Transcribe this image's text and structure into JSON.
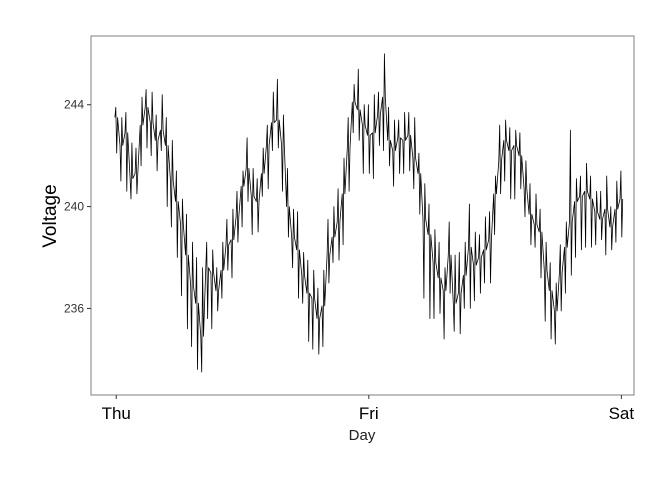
{
  "chart_data": {
    "type": "line",
    "title": "",
    "xlabel": "Day",
    "ylabel": "Voltage",
    "x_ticks": [
      "Thu",
      "Fri",
      "Sat"
    ],
    "x_tick_positions": [
      0,
      1,
      2
    ],
    "y_ticks": [
      236,
      240,
      244
    ],
    "xlim": [
      -0.1,
      2.05
    ],
    "ylim": [
      232.6,
      246.7
    ],
    "grid": false,
    "series": [
      {
        "color": "#000000",
        "x": [
          0.0,
          0.02,
          0.04,
          0.06,
          0.08,
          0.1,
          0.12,
          0.14,
          0.16,
          0.18,
          0.2,
          0.22,
          0.24,
          0.26,
          0.28,
          0.3,
          0.32,
          0.34,
          0.36,
          0.38,
          0.4,
          0.42,
          0.44,
          0.46,
          0.48,
          0.5,
          0.52,
          0.54,
          0.56,
          0.58,
          0.6,
          0.62,
          0.64,
          0.66,
          0.68,
          0.7,
          0.72,
          0.74,
          0.76,
          0.78,
          0.8,
          0.82,
          0.84,
          0.86,
          0.88,
          0.9,
          0.92,
          0.94,
          0.96,
          0.98,
          1.0,
          1.02,
          1.04,
          1.06,
          1.08,
          1.1,
          1.12,
          1.14,
          1.16,
          1.18,
          1.2,
          1.22,
          1.24,
          1.26,
          1.28,
          1.3,
          1.32,
          1.34,
          1.36,
          1.38,
          1.4,
          1.42,
          1.44,
          1.46,
          1.48,
          1.5,
          1.52,
          1.54,
          1.56,
          1.58,
          1.6,
          1.62,
          1.64,
          1.66,
          1.68,
          1.7,
          1.72,
          1.74,
          1.76,
          1.78,
          1.8,
          1.82,
          1.84,
          1.86,
          1.88,
          1.9,
          1.92,
          1.94,
          1.96,
          1.98,
          2.0
        ],
        "y": [
          243.5,
          242.4,
          242.9,
          241.1,
          241.3,
          243.2,
          243.9,
          243.3,
          242.6,
          243.0,
          242.4,
          241.0,
          240.2,
          239.3,
          238.1,
          236.9,
          236.2,
          234.9,
          237.6,
          237.4,
          236.7,
          237.5,
          238.5,
          238.7,
          239.6,
          240.8,
          241.5,
          240.4,
          240.2,
          241.3,
          242.4,
          243.3,
          243.4,
          242.4,
          240.0,
          238.8,
          238.3,
          237.3,
          236.6,
          236.4,
          235.6,
          236.1,
          238.1,
          238.8,
          239.4,
          240.5,
          242.3,
          244.1,
          243.8,
          243.2,
          242.8,
          242.9,
          243.6,
          244.3,
          242.6,
          242.2,
          242.7,
          242.6,
          242.8,
          241.9,
          241.3,
          239.5,
          238.9,
          237.8,
          237.2,
          236.7,
          238.1,
          236.2,
          236.6,
          237.3,
          238.4,
          237.7,
          238.0,
          238.3,
          238.7,
          240.5,
          241.8,
          242.6,
          242.2,
          242.4,
          242.0,
          240.7,
          239.7,
          239.3,
          239.0,
          237.5,
          236.7,
          235.9,
          237.4,
          238.4,
          239.4,
          240.2,
          240.4,
          240.6,
          240.3,
          239.8,
          239.5,
          239.9,
          239.2,
          239.9,
          240.3
        ],
        "y_low": [
          242.1,
          241.0,
          240.6,
          240.3,
          240.5,
          241.6,
          242.3,
          242.0,
          241.4,
          242.2,
          240.0,
          239.2,
          238.0,
          236.5,
          235.2,
          234.5,
          233.6,
          233.5,
          235.6,
          235.2,
          235.9,
          236.4,
          237.5,
          237.2,
          238.6,
          239.2,
          240.2,
          238.9,
          239.0,
          240.4,
          240.7,
          242.2,
          242.3,
          240.6,
          238.8,
          237.6,
          236.4,
          236.2,
          234.7,
          234.4,
          234.2,
          234.5,
          237.0,
          237.8,
          237.9,
          238.5,
          240.6,
          242.9,
          242.6,
          241.3,
          241.3,
          241.1,
          242.4,
          242.2,
          241.6,
          240.8,
          241.3,
          241.3,
          241.4,
          240.7,
          239.7,
          236.4,
          235.6,
          235.6,
          235.8,
          234.8,
          236.6,
          235.1,
          235.0,
          236.0,
          236.0,
          236.3,
          236.6,
          237.0,
          237.0,
          238.9,
          240.5,
          241.0,
          240.3,
          240.3,
          240.7,
          239.6,
          238.5,
          238.4,
          237.2,
          235.5,
          234.8,
          234.6,
          235.9,
          236.6,
          237.3,
          238.0,
          238.3,
          238.4,
          238.4,
          238.5,
          238.7,
          238.1,
          238.3,
          238.6,
          238.8
        ],
        "y_high": [
          243.9,
          243.5,
          243.7,
          242.5,
          242.3,
          244.3,
          244.6,
          244.5,
          243.6,
          244.4,
          243.5,
          242.6,
          241.4,
          240.3,
          239.7,
          238.6,
          238.0,
          237.6,
          238.6,
          238.3,
          237.6,
          238.6,
          239.5,
          239.9,
          240.6,
          241.4,
          242.7,
          241.5,
          241.1,
          242.3,
          243.2,
          244.5,
          245.0,
          243.6,
          241.5,
          239.9,
          239.8,
          238.2,
          237.9,
          237.5,
          236.8,
          237.5,
          239.5,
          240.0,
          240.7,
          241.9,
          243.5,
          244.8,
          245.4,
          244.0,
          244.0,
          244.4,
          244.5,
          246.0,
          243.9,
          243.4,
          243.4,
          243.7,
          243.7,
          243.5,
          242.1,
          240.9,
          240.1,
          239.1,
          238.6,
          237.6,
          239.4,
          238.1,
          238.2,
          238.6,
          240.1,
          239.0,
          238.9,
          239.6,
          239.8,
          241.2,
          243.2,
          243.4,
          243.1,
          243.0,
          242.9,
          241.8,
          240.9,
          240.5,
          239.9,
          238.6,
          237.8,
          237.0,
          238.5,
          239.4,
          243.0,
          241.1,
          241.2,
          241.7,
          241.2,
          240.6,
          240.6,
          241.2,
          240.0,
          241.0,
          241.4
        ]
      }
    ]
  }
}
